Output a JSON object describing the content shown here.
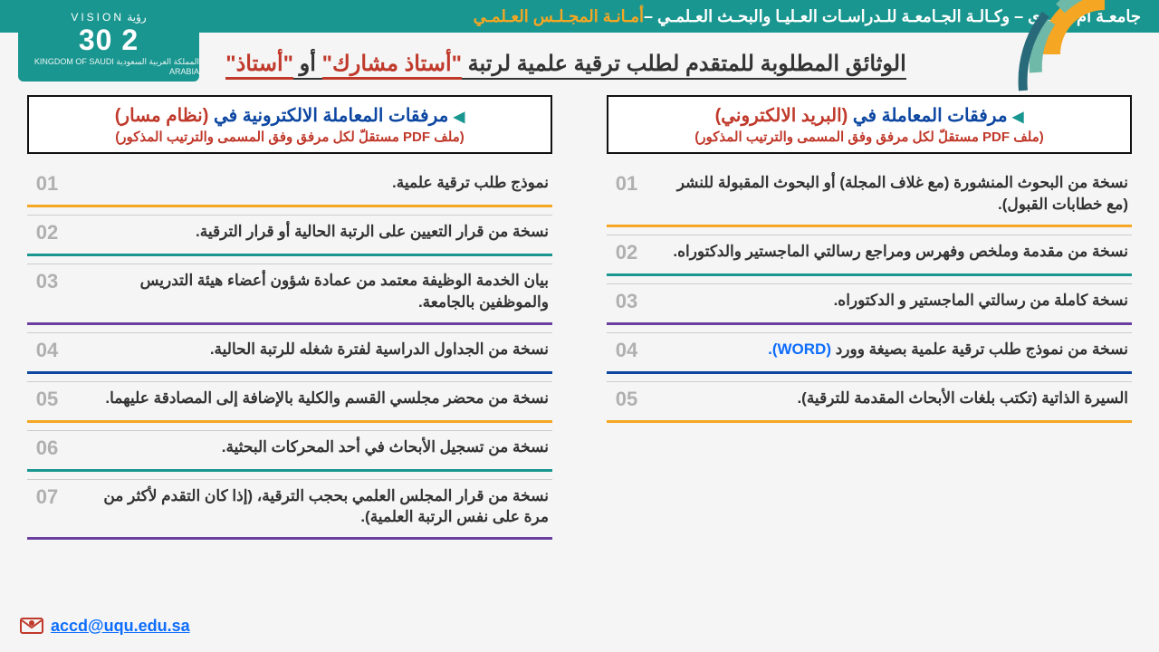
{
  "header": {
    "main": "جامعـة أم القـرى – وكـالـة الجـامعـة للـدراسـات العـليـا والبحـث العـلمـي – ",
    "accent": "أمـانـة المجـلـس العـلمـي"
  },
  "vision": {
    "top": "رؤية  VISION",
    "num": "2  30",
    "bot": "المملكة العربية السعودية  KINGDOM OF SAUDI ARABIA"
  },
  "title": {
    "pre": "الوثائق المطلوبة للمتقدم لطلب ترقية علمية لرتبة ",
    "r1": "\"أستاذ مشارك\"",
    "mid": " أو ",
    "r2": "\"أستاذ\""
  },
  "right": {
    "h1a": " مرفقات المعاملة الالكترونية في ",
    "h1b": "(نظام مسار)",
    "h2": "(ملف PDF مستقلّ لكل مرفق وفق المسمى والترتيب المذكور)",
    "items": [
      {
        "n": "01",
        "t": "نموذج طلب ترقية علمية.",
        "c": "#f5a623"
      },
      {
        "n": "02",
        "t": "نسخة من قرار التعيين على الرتبة الحالية أو قرار الترقية.",
        "c": "#1a9690"
      },
      {
        "n": "03",
        "t": "بيان الخدمة الوظيفة معتمد من عمادة شؤون أعضاء هيئة التدريس والموظفين بالجامعة.",
        "c": "#6b3fa0"
      },
      {
        "n": "04",
        "t": "نسخة من الجداول الدراسية لفترة شغله للرتبة الحالية.",
        "c": "#0d47a1"
      },
      {
        "n": "05",
        "t": "نسخة من محضر مجلسي القسم والكلية بالإضافة إلى المصادقة عليهما.",
        "c": "#f5a623"
      },
      {
        "n": "06",
        "t": "نسخة من تسجيل الأبحاث في أحد المحركات البحثية.",
        "c": "#1a9690"
      },
      {
        "n": "07",
        "t": "نسخة من قرار المجلس العلمي بحجب الترقية،\n(إذا كان التقدم لأكثر من مرة على نفس الرتبة العلمية).",
        "c": "#6b3fa0"
      }
    ]
  },
  "left": {
    "h1a": " مرفقات المعاملة في ",
    "h1b": "(البريد الالكتروني)",
    "h2": "(ملف PDF مستقلّ لكل مرفق وفق المسمى والترتيب المذكور)",
    "items": [
      {
        "n": "01",
        "t": "نسخة من البحوث المنشورة (مع غلاف المجلة) أو البحوث المقبولة للنشر (مع خطابات القبول).",
        "c": "#f5a623"
      },
      {
        "n": "02",
        "t": "نسخة من مقدمة وملخص وفهرس ومراجع رسالتي الماجستير والدكتوراه.",
        "c": "#1a9690"
      },
      {
        "n": "03",
        "t": "نسخة كاملة من رسالتي الماجستير و الدكتوراه.",
        "c": "#6b3fa0"
      },
      {
        "n": "04",
        "t": "نسخة من نموذج طلب ترقية علمية بصيغة وورد ",
        "w": "(WORD).",
        "c": "#0d47a1"
      },
      {
        "n": "05",
        "t": "السيرة الذاتية (تكتب بلغات الأبحاث المقدمة للترقية).",
        "c": "#f5a623"
      }
    ]
  },
  "email": "accd@uqu.edu.sa"
}
